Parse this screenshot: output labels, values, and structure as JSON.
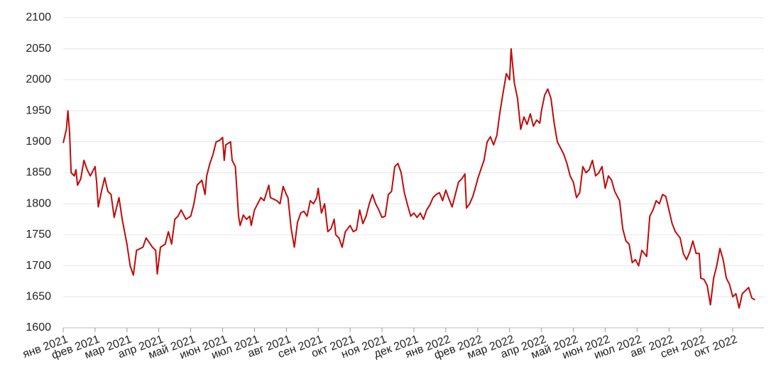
{
  "chart_data": {
    "type": "line",
    "color": "#c00a0a",
    "grid": true,
    "xlim": [
      0,
      21.98
    ],
    "ylim": [
      1600,
      2100
    ],
    "yticks": [
      1600,
      1650,
      1700,
      1750,
      1800,
      1850,
      1900,
      1950,
      2000,
      2050,
      2100
    ],
    "xticks": [
      {
        "value": 0,
        "label": "янв 2021"
      },
      {
        "value": 1,
        "label": "фев 2021"
      },
      {
        "value": 2,
        "label": "мар 2021"
      },
      {
        "value": 3,
        "label": "апр 2021"
      },
      {
        "value": 4,
        "label": "май 2021"
      },
      {
        "value": 5,
        "label": "июн 2021"
      },
      {
        "value": 6,
        "label": "июл 2021"
      },
      {
        "value": 7,
        "label": "авг 2021"
      },
      {
        "value": 8,
        "label": "сен 2021"
      },
      {
        "value": 9,
        "label": "окт 2021"
      },
      {
        "value": 10,
        "label": "ноя 2021"
      },
      {
        "value": 11,
        "label": "дек 2021"
      },
      {
        "value": 12,
        "label": "янв 2022"
      },
      {
        "value": 13,
        "label": "фев 2022"
      },
      {
        "value": 14,
        "label": "мар 2022"
      },
      {
        "value": 15,
        "label": "апр 2022"
      },
      {
        "value": 16,
        "label": "май 2022"
      },
      {
        "value": 17,
        "label": "июн 2022"
      },
      {
        "value": 18,
        "label": "июл 2022"
      },
      {
        "value": 19,
        "label": "авг 2022"
      },
      {
        "value": 20,
        "label": "сен 2022"
      },
      {
        "value": 21,
        "label": "окт 2022"
      }
    ],
    "x": [
      0,
      0.1,
      0.15,
      0.2,
      0.25,
      0.35,
      0.4,
      0.45,
      0.55,
      0.65,
      0.75,
      0.85,
      1.0,
      1.05,
      1.1,
      1.2,
      1.3,
      1.4,
      1.5,
      1.6,
      1.75,
      1.85,
      2.0,
      2.1,
      2.2,
      2.3,
      2.5,
      2.6,
      2.8,
      2.9,
      2.95,
      3.05,
      3.2,
      3.3,
      3.4,
      3.5,
      3.6,
      3.7,
      3.85,
      4.0,
      4.1,
      4.2,
      4.35,
      4.45,
      4.5,
      4.6,
      4.7,
      4.8,
      4.9,
      5.0,
      5.05,
      5.1,
      5.25,
      5.3,
      5.4,
      5.5,
      5.55,
      5.65,
      5.75,
      5.85,
      5.9,
      6.0,
      6.1,
      6.2,
      6.3,
      6.45,
      6.5,
      6.7,
      6.8,
      6.9,
      7.0,
      7.05,
      7.15,
      7.25,
      7.35,
      7.45,
      7.55,
      7.65,
      7.75,
      7.85,
      7.95,
      8.0,
      8.1,
      8.2,
      8.3,
      8.4,
      8.5,
      8.55,
      8.65,
      8.75,
      8.85,
      9.0,
      9.1,
      9.2,
      9.3,
      9.4,
      9.5,
      9.6,
      9.7,
      9.8,
      9.9,
      10.0,
      10.1,
      10.2,
      10.3,
      10.4,
      10.5,
      10.6,
      10.7,
      10.8,
      10.9,
      11.0,
      11.1,
      11.2,
      11.3,
      11.4,
      11.5,
      11.6,
      11.7,
      11.8,
      11.9,
      12.0,
      12.1,
      12.2,
      12.3,
      12.4,
      12.5,
      12.6,
      12.65,
      12.75,
      12.85,
      12.95,
      13.0,
      13.1,
      13.2,
      13.3,
      13.4,
      13.5,
      13.6,
      13.7,
      13.8,
      13.9,
      14.0,
      14.05,
      14.15,
      14.25,
      14.35,
      14.45,
      14.55,
      14.65,
      14.75,
      14.85,
      14.95,
      15.0,
      15.1,
      15.2,
      15.3,
      15.4,
      15.5,
      15.6,
      15.7,
      15.8,
      15.9,
      16.0,
      16.1,
      16.2,
      16.3,
      16.4,
      16.5,
      16.6,
      16.7,
      16.8,
      16.9,
      17.0,
      17.1,
      17.2,
      17.3,
      17.45,
      17.55,
      17.65,
      17.75,
      17.85,
      17.95,
      18.05,
      18.15,
      18.3,
      18.4,
      18.5,
      18.6,
      18.7,
      18.8,
      18.9,
      19.0,
      19.1,
      19.2,
      19.35,
      19.45,
      19.55,
      19.65,
      19.75,
      19.85,
      19.95,
      20.0,
      20.1,
      20.2,
      20.3,
      20.4,
      20.5,
      20.6,
      20.7,
      20.8,
      20.9,
      21.0,
      21.1,
      21.2,
      21.3,
      21.5,
      21.6,
      21.7
    ],
    "values": [
      1898,
      1920,
      1950,
      1915,
      1850,
      1845,
      1855,
      1830,
      1840,
      1870,
      1855,
      1845,
      1860,
      1835,
      1795,
      1820,
      1842,
      1820,
      1815,
      1778,
      1810,
      1775,
      1735,
      1700,
      1685,
      1725,
      1730,
      1745,
      1730,
      1725,
      1687,
      1730,
      1735,
      1755,
      1735,
      1775,
      1780,
      1790,
      1775,
      1780,
      1800,
      1830,
      1838,
      1815,
      1845,
      1865,
      1880,
      1900,
      1902,
      1907,
      1870,
      1895,
      1900,
      1870,
      1860,
      1780,
      1765,
      1782,
      1775,
      1780,
      1765,
      1790,
      1800,
      1810,
      1805,
      1830,
      1810,
      1805,
      1800,
      1828,
      1815,
      1810,
      1760,
      1730,
      1770,
      1785,
      1788,
      1780,
      1805,
      1800,
      1810,
      1825,
      1785,
      1800,
      1755,
      1760,
      1775,
      1750,
      1745,
      1730,
      1755,
      1765,
      1755,
      1758,
      1790,
      1768,
      1780,
      1800,
      1815,
      1800,
      1790,
      1778,
      1780,
      1815,
      1820,
      1860,
      1865,
      1850,
      1818,
      1798,
      1780,
      1785,
      1778,
      1785,
      1775,
      1790,
      1798,
      1810,
      1815,
      1818,
      1805,
      1822,
      1808,
      1795,
      1815,
      1835,
      1840,
      1848,
      1793,
      1800,
      1812,
      1830,
      1840,
      1855,
      1870,
      1900,
      1908,
      1895,
      1910,
      1948,
      1980,
      2010,
      2000,
      2050,
      1995,
      1970,
      1920,
      1940,
      1928,
      1945,
      1925,
      1935,
      1930,
      1950,
      1975,
      1985,
      1970,
      1930,
      1900,
      1890,
      1880,
      1865,
      1845,
      1835,
      1810,
      1818,
      1860,
      1850,
      1855,
      1870,
      1845,
      1850,
      1860,
      1825,
      1845,
      1838,
      1820,
      1805,
      1760,
      1740,
      1735,
      1705,
      1710,
      1700,
      1725,
      1715,
      1780,
      1790,
      1805,
      1800,
      1815,
      1812,
      1790,
      1768,
      1755,
      1745,
      1720,
      1710,
      1722,
      1740,
      1720,
      1720,
      1680,
      1678,
      1668,
      1637,
      1680,
      1700,
      1728,
      1710,
      1680,
      1670,
      1650,
      1655,
      1632,
      1655,
      1665,
      1648,
      1645
    ]
  }
}
